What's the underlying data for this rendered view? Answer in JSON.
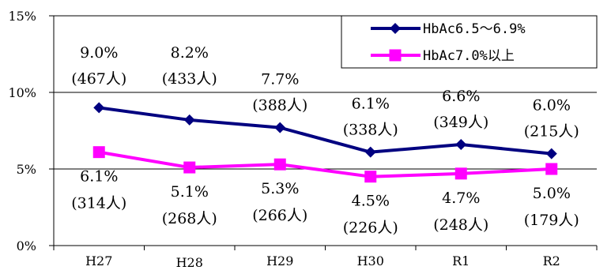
{
  "chart_data": {
    "type": "line",
    "title": "",
    "xlabel": "",
    "ylabel": "",
    "categories": [
      "H27",
      "H28",
      "H29",
      "H30",
      "R1",
      "R2"
    ],
    "ylim": [
      0,
      15
    ],
    "yticks": [
      0,
      5,
      10,
      15
    ],
    "ytick_labels": [
      "0%",
      "5%",
      "10%",
      "15%"
    ],
    "grid": true,
    "legend_position": "top-right",
    "series": [
      {
        "name": "HbAc6.5〜6.9%",
        "color": "#000080",
        "marker": "diamond",
        "values": [
          9.0,
          8.2,
          7.7,
          6.1,
          6.6,
          6.0
        ],
        "pct_labels": [
          "9.0%",
          "8.2%",
          "7.7%",
          "6.1%",
          "6.6%",
          "6.0%"
        ],
        "count_labels": [
          "(467人)",
          "(433人)",
          "(388人)",
          "(338人)",
          "(349人)",
          "(215人)"
        ]
      },
      {
        "name": "HbAc7.0%以上",
        "color": "#FF00FF",
        "marker": "square",
        "values": [
          6.1,
          5.1,
          5.3,
          4.5,
          4.7,
          5.0
        ],
        "pct_labels": [
          "6.1%",
          "5.1%",
          "5.3%",
          "4.5%",
          "4.7%",
          "5.0%"
        ],
        "count_labels": [
          "(314人)",
          "(268人)",
          "(266人)",
          "(226人)",
          "(248人)",
          "(179人)"
        ]
      }
    ]
  }
}
